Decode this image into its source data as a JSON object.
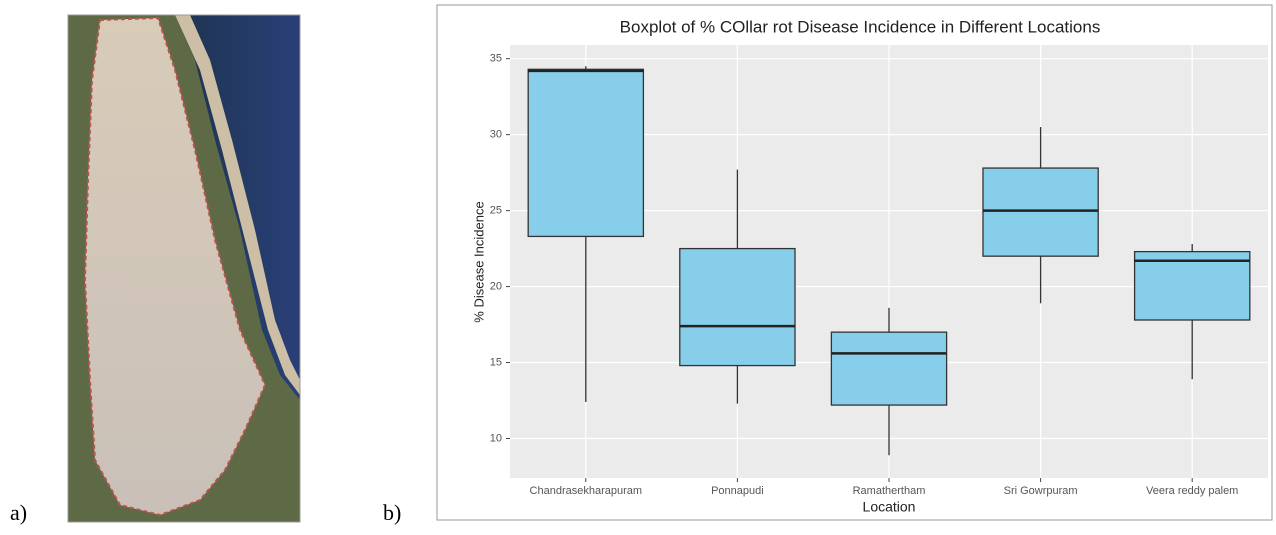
{
  "panel_labels": [
    "a)",
    "b)"
  ],
  "chart_data": {
    "type": "boxplot",
    "title": "Boxplot of % COllar rot Disease Incidence in Different Locations",
    "x_label": "Location",
    "y_label": "% Disease Incidence",
    "categories": [
      "Chandrasekharapuram",
      "Ponnapudi",
      "Ramathertham",
      "Sri Gowrpuram",
      "Veera reddy palem"
    ],
    "values": [
      {
        "min": 12.4,
        "q1": 23.3,
        "median": 34.2,
        "q3": 34.3,
        "max": 34.5
      },
      {
        "min": 12.3,
        "q1": 14.8,
        "median": 17.4,
        "q3": 22.5,
        "max": 27.7
      },
      {
        "min": 8.9,
        "q1": 12.2,
        "median": 15.6,
        "q3": 17.0,
        "max": 18.6
      },
      {
        "min": 18.9,
        "q1": 22.0,
        "median": 25.0,
        "q3": 27.8,
        "max": 30.5
      },
      {
        "min": 13.9,
        "q1": 17.8,
        "median": 21.7,
        "q3": 22.3,
        "max": 22.8
      }
    ],
    "color": "#87ceeb",
    "ylim": [
      7.4,
      35.9
    ],
    "yticks": [
      10,
      15,
      20,
      25,
      30,
      35
    ],
    "grid": true
  }
}
